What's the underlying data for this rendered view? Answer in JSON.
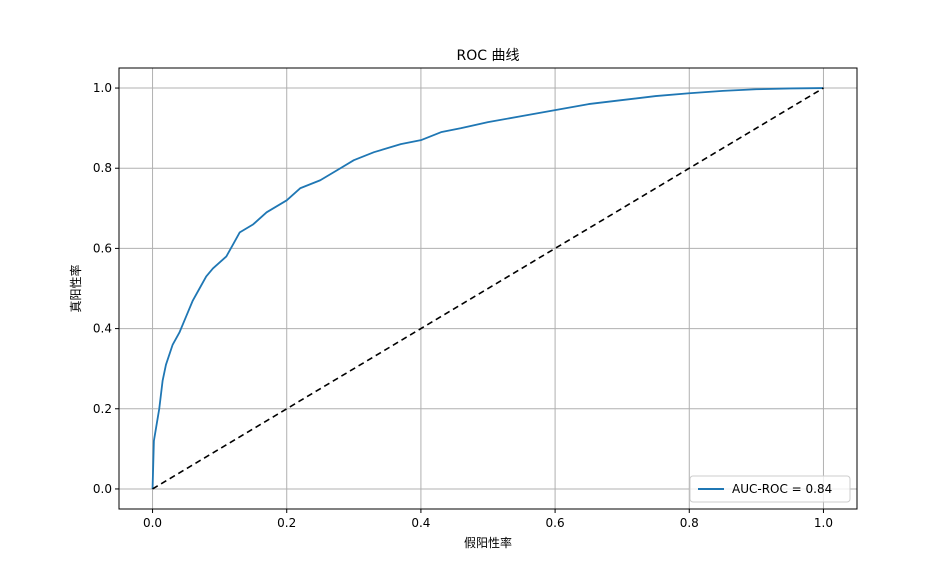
{
  "chart_data": {
    "type": "line",
    "title": "ROC 曲线",
    "xlabel": "假阳性率",
    "ylabel": "真阳性率",
    "xlim": [
      -0.05,
      1.05
    ],
    "ylim": [
      -0.05,
      1.05
    ],
    "x_ticks": [
      "0.0",
      "0.2",
      "0.4",
      "0.6",
      "0.8",
      "1.0"
    ],
    "y_ticks": [
      "0.0",
      "0.2",
      "0.4",
      "0.6",
      "0.8",
      "1.0"
    ],
    "grid": true,
    "legend_position": "bottom-right",
    "series": [
      {
        "name": "AUC-ROC = 0.84",
        "color": "#1f77b4",
        "style": "solid",
        "points": [
          [
            0.0,
            0.0
          ],
          [
            0.002,
            0.12
          ],
          [
            0.005,
            0.15
          ],
          [
            0.01,
            0.2
          ],
          [
            0.015,
            0.27
          ],
          [
            0.02,
            0.31
          ],
          [
            0.03,
            0.36
          ],
          [
            0.04,
            0.39
          ],
          [
            0.05,
            0.43
          ],
          [
            0.06,
            0.47
          ],
          [
            0.07,
            0.5
          ],
          [
            0.08,
            0.53
          ],
          [
            0.09,
            0.55
          ],
          [
            0.1,
            0.565
          ],
          [
            0.11,
            0.58
          ],
          [
            0.12,
            0.61
          ],
          [
            0.13,
            0.64
          ],
          [
            0.15,
            0.66
          ],
          [
            0.17,
            0.69
          ],
          [
            0.2,
            0.72
          ],
          [
            0.22,
            0.75
          ],
          [
            0.25,
            0.77
          ],
          [
            0.28,
            0.8
          ],
          [
            0.3,
            0.82
          ],
          [
            0.33,
            0.84
          ],
          [
            0.37,
            0.86
          ],
          [
            0.4,
            0.87
          ],
          [
            0.43,
            0.89
          ],
          [
            0.46,
            0.9
          ],
          [
            0.5,
            0.915
          ],
          [
            0.55,
            0.93
          ],
          [
            0.6,
            0.945
          ],
          [
            0.65,
            0.96
          ],
          [
            0.7,
            0.97
          ],
          [
            0.75,
            0.98
          ],
          [
            0.8,
            0.987
          ],
          [
            0.85,
            0.993
          ],
          [
            0.9,
            0.997
          ],
          [
            0.95,
            0.999
          ],
          [
            1.0,
            1.0
          ]
        ]
      },
      {
        "name": "",
        "color": "#000000",
        "style": "dashed",
        "points": [
          [
            0.0,
            0.0
          ],
          [
            1.0,
            1.0
          ]
        ]
      }
    ]
  }
}
